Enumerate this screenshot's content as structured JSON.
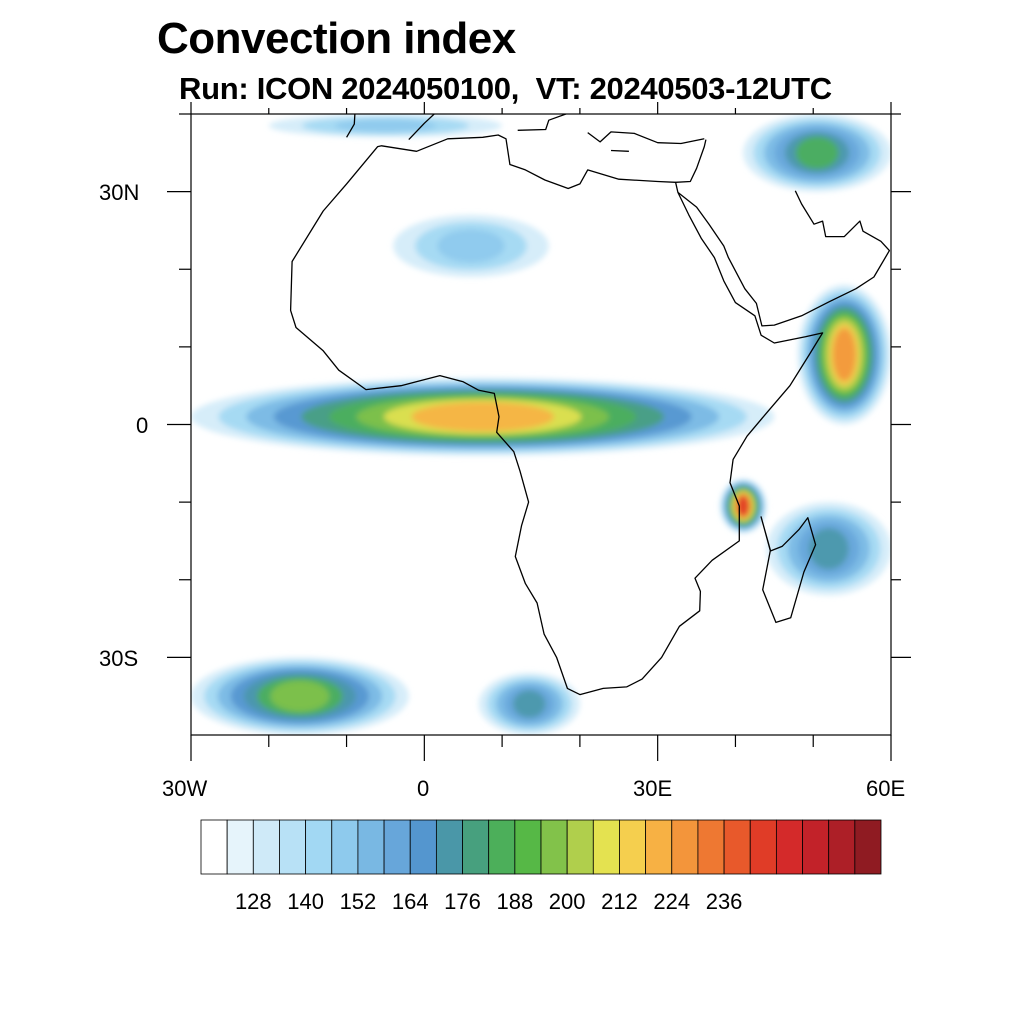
{
  "title": "Convection index",
  "subtitle": "Run: ICON 2024050100,  VT: 20240503-12UTC",
  "axes": {
    "lat_labels": [
      "30N",
      "0",
      "30S"
    ],
    "lon_labels": [
      "30W",
      "0",
      "30E",
      "60E"
    ]
  },
  "chart_data": {
    "type": "heatmap",
    "title": "Convection index",
    "subtitle": "Run: ICON 2024050100,  VT: 20240503-12UTC",
    "lon_range": [
      -30,
      60
    ],
    "lat_range": [
      -40,
      40
    ],
    "colorbar": {
      "tick_labels": [
        "128",
        "140",
        "152",
        "164",
        "176",
        "188",
        "200",
        "212",
        "224",
        "236"
      ],
      "colors": [
        "#ffffff",
        "#e6f4fb",
        "#cfeaf8",
        "#b8e1f6",
        "#a2d8f3",
        "#8ecaed",
        "#79b8e3",
        "#67a6da",
        "#5496cf",
        "#4a97a8",
        "#47a07e",
        "#4caf5a",
        "#56b846",
        "#82c24a",
        "#b0cf4c",
        "#e4e250",
        "#f5cf4e",
        "#f7b144",
        "#f3953b",
        "#ee7832",
        "#e8592b",
        "#e03c27",
        "#d42a2a",
        "#c22229",
        "#ad1f27",
        "#8f1b22"
      ]
    },
    "features": [
      {
        "name": "equatorial-convection-band",
        "lon": [
          -30,
          45
        ],
        "lat": [
          -4,
          6
        ],
        "peak": 212
      },
      {
        "name": "sahara-cloud-streak",
        "lon": [
          -4,
          16
        ],
        "lat": [
          19,
          27
        ],
        "peak": 140
      },
      {
        "name": "arabian-sea-convection",
        "lon": [
          48,
          60
        ],
        "lat": [
          0,
          18
        ],
        "peak": 220
      },
      {
        "name": "tanzania-coast-cell",
        "lon": [
          38,
          44
        ],
        "lat": [
          -14,
          -7
        ],
        "peak": 236
      },
      {
        "name": "mozambique-channel-band",
        "lon": [
          44,
          60
        ],
        "lat": [
          -22,
          -10
        ],
        "peak": 164
      },
      {
        "name": "mediterranean-band",
        "lon": [
          -20,
          10
        ],
        "lat": [
          37,
          40
        ],
        "peak": 140
      },
      {
        "name": "middle-east-convection",
        "lon": [
          41,
          60
        ],
        "lat": [
          30,
          40
        ],
        "peak": 176
      },
      {
        "name": "south-atlantic-frontal-band",
        "lon": [
          -30,
          -2
        ],
        "lat": [
          -40,
          -30
        ],
        "peak": 188
      },
      {
        "name": "south-africa-frontal-band",
        "lon": [
          7,
          20
        ],
        "lat": [
          -40,
          -32
        ],
        "peak": 164
      }
    ]
  }
}
